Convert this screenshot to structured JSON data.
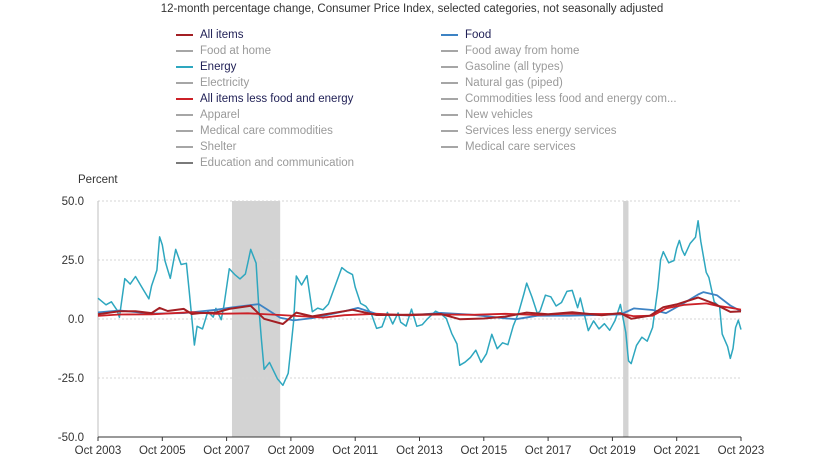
{
  "chart_data": {
    "type": "line",
    "title": "12-month percentage change, Consumer Price Index, selected categories, not seasonally adjusted",
    "ylabel": "Percent",
    "ylim": [
      -50,
      50
    ],
    "yticks": [
      "50.0",
      "25.0",
      "0.0",
      "-25.0",
      "-50.0"
    ],
    "ytick_values": [
      50,
      25,
      0,
      -25,
      -50
    ],
    "xlim": [
      "2003-10",
      "2023-10"
    ],
    "xticks": [
      "Oct 2003",
      "Oct 2005",
      "Oct 2007",
      "Oct 2009",
      "Oct 2011",
      "Oct 2013",
      "Oct 2015",
      "Oct 2017",
      "Oct 2019",
      "Oct 2021",
      "Oct 2023"
    ],
    "xtick_values": [
      "2003-10",
      "2005-10",
      "2007-10",
      "2009-10",
      "2011-10",
      "2013-10",
      "2015-10",
      "2017-10",
      "2019-10",
      "2021-10",
      "2023-10"
    ],
    "grid": "horizontal-dotted",
    "legend_position": "top",
    "recessions": [
      {
        "start": "2007-12",
        "end": "2009-06"
      },
      {
        "start": "2020-02",
        "end": "2020-04"
      }
    ],
    "series": [
      {
        "name": "All items",
        "color": "#a31f24",
        "active": true,
        "drawn": true,
        "points": [
          [
            "2003-10",
            2.0
          ],
          [
            "2004-06",
            3.3
          ],
          [
            "2004-12",
            3.3
          ],
          [
            "2005-06",
            2.5
          ],
          [
            "2005-09",
            4.7
          ],
          [
            "2005-12",
            3.4
          ],
          [
            "2006-06",
            4.3
          ],
          [
            "2006-09",
            2.1
          ],
          [
            "2006-12",
            2.5
          ],
          [
            "2007-06",
            2.7
          ],
          [
            "2007-11",
            4.3
          ],
          [
            "2008-07",
            5.6
          ],
          [
            "2008-12",
            0.1
          ],
          [
            "2009-07",
            -2.1
          ],
          [
            "2009-12",
            2.7
          ],
          [
            "2010-06",
            1.1
          ],
          [
            "2011-09",
            3.9
          ],
          [
            "2012-06",
            1.7
          ],
          [
            "2013-06",
            1.8
          ],
          [
            "2014-06",
            2.1
          ],
          [
            "2015-01",
            -0.1
          ],
          [
            "2015-10",
            0.2
          ],
          [
            "2016-06",
            1.0
          ],
          [
            "2017-02",
            2.7
          ],
          [
            "2017-10",
            2.0
          ],
          [
            "2018-07",
            2.9
          ],
          [
            "2019-06",
            1.6
          ],
          [
            "2020-01",
            2.5
          ],
          [
            "2020-05",
            0.1
          ],
          [
            "2020-12",
            1.4
          ],
          [
            "2021-05",
            5.0
          ],
          [
            "2021-10",
            6.2
          ],
          [
            "2022-06",
            9.1
          ],
          [
            "2022-12",
            6.5
          ],
          [
            "2023-06",
            3.0
          ],
          [
            "2023-10",
            3.2
          ]
        ]
      },
      {
        "name": "Food",
        "color": "#3d83c4",
        "active": true,
        "drawn": true,
        "points": [
          [
            "2003-10",
            2.8
          ],
          [
            "2004-06",
            3.6
          ],
          [
            "2005-06",
            2.3
          ],
          [
            "2006-06",
            2.5
          ],
          [
            "2007-06",
            3.9
          ],
          [
            "2007-12",
            4.9
          ],
          [
            "2008-10",
            6.3
          ],
          [
            "2009-06",
            0.5
          ],
          [
            "2009-11",
            -0.6
          ],
          [
            "2010-06",
            0.4
          ],
          [
            "2011-06",
            3.3
          ],
          [
            "2011-11",
            4.7
          ],
          [
            "2012-06",
            2.1
          ],
          [
            "2013-06",
            1.5
          ],
          [
            "2014-06",
            2.6
          ],
          [
            "2015-06",
            1.8
          ],
          [
            "2016-06",
            0.3
          ],
          [
            "2016-10",
            -0.1
          ],
          [
            "2017-06",
            1.4
          ],
          [
            "2018-06",
            1.4
          ],
          [
            "2019-06",
            1.8
          ],
          [
            "2020-01",
            1.9
          ],
          [
            "2020-06",
            4.5
          ],
          [
            "2021-01",
            3.8
          ],
          [
            "2021-06",
            2.5
          ],
          [
            "2021-12",
            6.3
          ],
          [
            "2022-06",
            10.4
          ],
          [
            "2022-08",
            11.4
          ],
          [
            "2023-01",
            10.1
          ],
          [
            "2023-06",
            5.7
          ],
          [
            "2023-10",
            3.3
          ]
        ]
      },
      {
        "name": "Energy",
        "color": "#2ea7bf",
        "active": true,
        "drawn": true,
        "points": [
          [
            "2003-10",
            8.8
          ],
          [
            "2004-01",
            6.0
          ],
          [
            "2004-03",
            7.3
          ],
          [
            "2004-05",
            3.9
          ],
          [
            "2004-06",
            0.7
          ],
          [
            "2004-08",
            17.1
          ],
          [
            "2004-10",
            14.8
          ],
          [
            "2004-12",
            18.0
          ],
          [
            "2005-03",
            12.3
          ],
          [
            "2005-05",
            8.5
          ],
          [
            "2005-06",
            14.1
          ],
          [
            "2005-08",
            20.7
          ],
          [
            "2005-09",
            34.8
          ],
          [
            "2005-10",
            31.4
          ],
          [
            "2005-11",
            24.6
          ],
          [
            "2006-01",
            17.2
          ],
          [
            "2006-03",
            29.5
          ],
          [
            "2006-05",
            23.1
          ],
          [
            "2006-07",
            23.6
          ],
          [
            "2006-08",
            12.3
          ],
          [
            "2006-10",
            -11.0
          ],
          [
            "2006-11",
            -3.1
          ],
          [
            "2007-01",
            -4.2
          ],
          [
            "2007-03",
            3.1
          ],
          [
            "2007-05",
            0.8
          ],
          [
            "2007-06",
            4.5
          ],
          [
            "2007-08",
            -0.3
          ],
          [
            "2007-09",
            5.6
          ],
          [
            "2007-11",
            21.3
          ],
          [
            "2008-01",
            18.9
          ],
          [
            "2008-03",
            17.0
          ],
          [
            "2008-05",
            19.1
          ],
          [
            "2008-06",
            24.1
          ],
          [
            "2008-07",
            29.5
          ],
          [
            "2008-09",
            23.7
          ],
          [
            "2008-10",
            5.1
          ],
          [
            "2008-11",
            -8.6
          ],
          [
            "2008-12",
            -21.3
          ],
          [
            "2009-02",
            -18.4
          ],
          [
            "2009-05",
            -25.4
          ],
          [
            "2009-07",
            -28.1
          ],
          [
            "2009-09",
            -23.0
          ],
          [
            "2009-10",
            -12.2
          ],
          [
            "2009-11",
            -1.0
          ],
          [
            "2009-12",
            18.2
          ],
          [
            "2010-02",
            14.4
          ],
          [
            "2010-04",
            18.4
          ],
          [
            "2010-06",
            3.1
          ],
          [
            "2010-08",
            4.6
          ],
          [
            "2010-10",
            3.9
          ],
          [
            "2010-12",
            6.3
          ],
          [
            "2011-03",
            15.5
          ],
          [
            "2011-05",
            21.8
          ],
          [
            "2011-07",
            20.0
          ],
          [
            "2011-09",
            18.8
          ],
          [
            "2011-10",
            13.5
          ],
          [
            "2011-12",
            6.6
          ],
          [
            "2012-02",
            5.4
          ],
          [
            "2012-04",
            2.2
          ],
          [
            "2012-06",
            -4.0
          ],
          [
            "2012-08",
            -3.3
          ],
          [
            "2012-10",
            2.8
          ],
          [
            "2012-12",
            -2.1
          ],
          [
            "2013-02",
            2.6
          ],
          [
            "2013-03",
            -1.4
          ],
          [
            "2013-05",
            -3.0
          ],
          [
            "2013-07",
            4.2
          ],
          [
            "2013-09",
            -3.1
          ],
          [
            "2013-11",
            -2.4
          ],
          [
            "2014-01",
            0.1
          ],
          [
            "2014-04",
            3.3
          ],
          [
            "2014-06",
            2.2
          ],
          [
            "2014-08",
            0.2
          ],
          [
            "2014-10",
            -6.1
          ],
          [
            "2014-12",
            -10.6
          ],
          [
            "2015-01",
            -19.6
          ],
          [
            "2015-03",
            -18.3
          ],
          [
            "2015-05",
            -16.3
          ],
          [
            "2015-07",
            -13.2
          ],
          [
            "2015-09",
            -18.4
          ],
          [
            "2015-11",
            -14.7
          ],
          [
            "2016-01",
            -6.5
          ],
          [
            "2016-03",
            -12.6
          ],
          [
            "2016-05",
            -10.1
          ],
          [
            "2016-07",
            -10.9
          ],
          [
            "2016-09",
            -2.9
          ],
          [
            "2016-11",
            2.7
          ],
          [
            "2017-01",
            10.8
          ],
          [
            "2017-02",
            15.2
          ],
          [
            "2017-04",
            9.3
          ],
          [
            "2017-06",
            2.3
          ],
          [
            "2017-07",
            3.4
          ],
          [
            "2017-09",
            10.1
          ],
          [
            "2017-11",
            9.4
          ],
          [
            "2018-01",
            5.5
          ],
          [
            "2018-03",
            7.0
          ],
          [
            "2018-05",
            11.7
          ],
          [
            "2018-07",
            12.1
          ],
          [
            "2018-09",
            4.8
          ],
          [
            "2018-10",
            8.9
          ],
          [
            "2018-12",
            -0.3
          ],
          [
            "2019-01",
            -4.9
          ],
          [
            "2019-03",
            -0.8
          ],
          [
            "2019-05",
            -4.2
          ],
          [
            "2019-07",
            -2.0
          ],
          [
            "2019-09",
            -4.8
          ],
          [
            "2019-11",
            -0.6
          ],
          [
            "2020-01",
            6.2
          ],
          [
            "2020-03",
            -5.7
          ],
          [
            "2020-04",
            -17.7
          ],
          [
            "2020-05",
            -18.9
          ],
          [
            "2020-07",
            -11.2
          ],
          [
            "2020-09",
            -7.7
          ],
          [
            "2020-11",
            -9.4
          ],
          [
            "2021-01",
            -3.6
          ],
          [
            "2021-03",
            13.2
          ],
          [
            "2021-04",
            25.1
          ],
          [
            "2021-05",
            28.5
          ],
          [
            "2021-07",
            23.8
          ],
          [
            "2021-09",
            24.8
          ],
          [
            "2021-10",
            30.0
          ],
          [
            "2021-11",
            33.3
          ],
          [
            "2021-12",
            29.3
          ],
          [
            "2022-01",
            27.0
          ],
          [
            "2022-03",
            32.0
          ],
          [
            "2022-05",
            34.6
          ],
          [
            "2022-06",
            41.6
          ],
          [
            "2022-07",
            32.9
          ],
          [
            "2022-09",
            19.8
          ],
          [
            "2022-10",
            17.6
          ],
          [
            "2022-12",
            7.3
          ],
          [
            "2023-02",
            5.2
          ],
          [
            "2023-03",
            -6.4
          ],
          [
            "2023-05",
            -11.7
          ],
          [
            "2023-06",
            -16.7
          ],
          [
            "2023-07",
            -12.5
          ],
          [
            "2023-08",
            -3.6
          ],
          [
            "2023-09",
            -0.5
          ],
          [
            "2023-10",
            -4.5
          ]
        ]
      },
      {
        "name": "All items less food and energy",
        "color": "#cc2027",
        "active": true,
        "drawn": true,
        "points": [
          [
            "2003-10",
            1.3
          ],
          [
            "2004-06",
            1.9
          ],
          [
            "2005-06",
            2.0
          ],
          [
            "2006-09",
            2.9
          ],
          [
            "2007-06",
            2.2
          ],
          [
            "2008-06",
            2.4
          ],
          [
            "2009-06",
            1.7
          ],
          [
            "2010-06",
            0.9
          ],
          [
            "2010-10",
            0.6
          ],
          [
            "2011-06",
            1.6
          ],
          [
            "2012-06",
            2.2
          ],
          [
            "2013-06",
            1.6
          ],
          [
            "2014-06",
            1.9
          ],
          [
            "2015-06",
            1.8
          ],
          [
            "2016-06",
            2.2
          ],
          [
            "2017-06",
            1.7
          ],
          [
            "2018-06",
            2.3
          ],
          [
            "2019-06",
            2.1
          ],
          [
            "2020-01",
            2.3
          ],
          [
            "2020-06",
            1.2
          ],
          [
            "2021-01",
            1.4
          ],
          [
            "2021-06",
            4.5
          ],
          [
            "2022-01",
            6.0
          ],
          [
            "2022-09",
            6.6
          ],
          [
            "2023-01",
            5.6
          ],
          [
            "2023-06",
            4.8
          ],
          [
            "2023-10",
            4.0
          ]
        ]
      },
      {
        "name": "Food at home",
        "color": "#a6a6a6",
        "active": false,
        "drawn": false,
        "points": []
      },
      {
        "name": "Food away from home",
        "color": "#a6a6a6",
        "active": false,
        "drawn": false,
        "points": []
      },
      {
        "name": "Electricity",
        "color": "#a6a6a6",
        "active": false,
        "drawn": false,
        "points": []
      },
      {
        "name": "Gasoline (all types)",
        "color": "#a6a6a6",
        "active": false,
        "drawn": false,
        "points": []
      },
      {
        "name": "Natural gas (piped)",
        "color": "#a6a6a6",
        "active": false,
        "drawn": false,
        "points": []
      },
      {
        "name": "Commodities less food and energy com...",
        "color": "#a6a6a6",
        "active": false,
        "drawn": false,
        "points": []
      },
      {
        "name": "Apparel",
        "color": "#a6a6a6",
        "active": false,
        "drawn": false,
        "points": []
      },
      {
        "name": "New vehicles",
        "color": "#a6a6a6",
        "active": false,
        "drawn": false,
        "points": []
      },
      {
        "name": "Medical care commodities",
        "color": "#a6a6a6",
        "active": false,
        "drawn": false,
        "points": []
      },
      {
        "name": "Services less energy services",
        "color": "#a6a6a6",
        "active": false,
        "drawn": false,
        "points": []
      },
      {
        "name": "Shelter",
        "color": "#a6a6a6",
        "active": false,
        "drawn": false,
        "points": []
      },
      {
        "name": "Medical care services",
        "color": "#a6a6a6",
        "active": false,
        "drawn": false,
        "points": []
      },
      {
        "name": "Education and communication",
        "color": "#7a7a7a",
        "active": false,
        "drawn": false,
        "points": []
      }
    ]
  }
}
